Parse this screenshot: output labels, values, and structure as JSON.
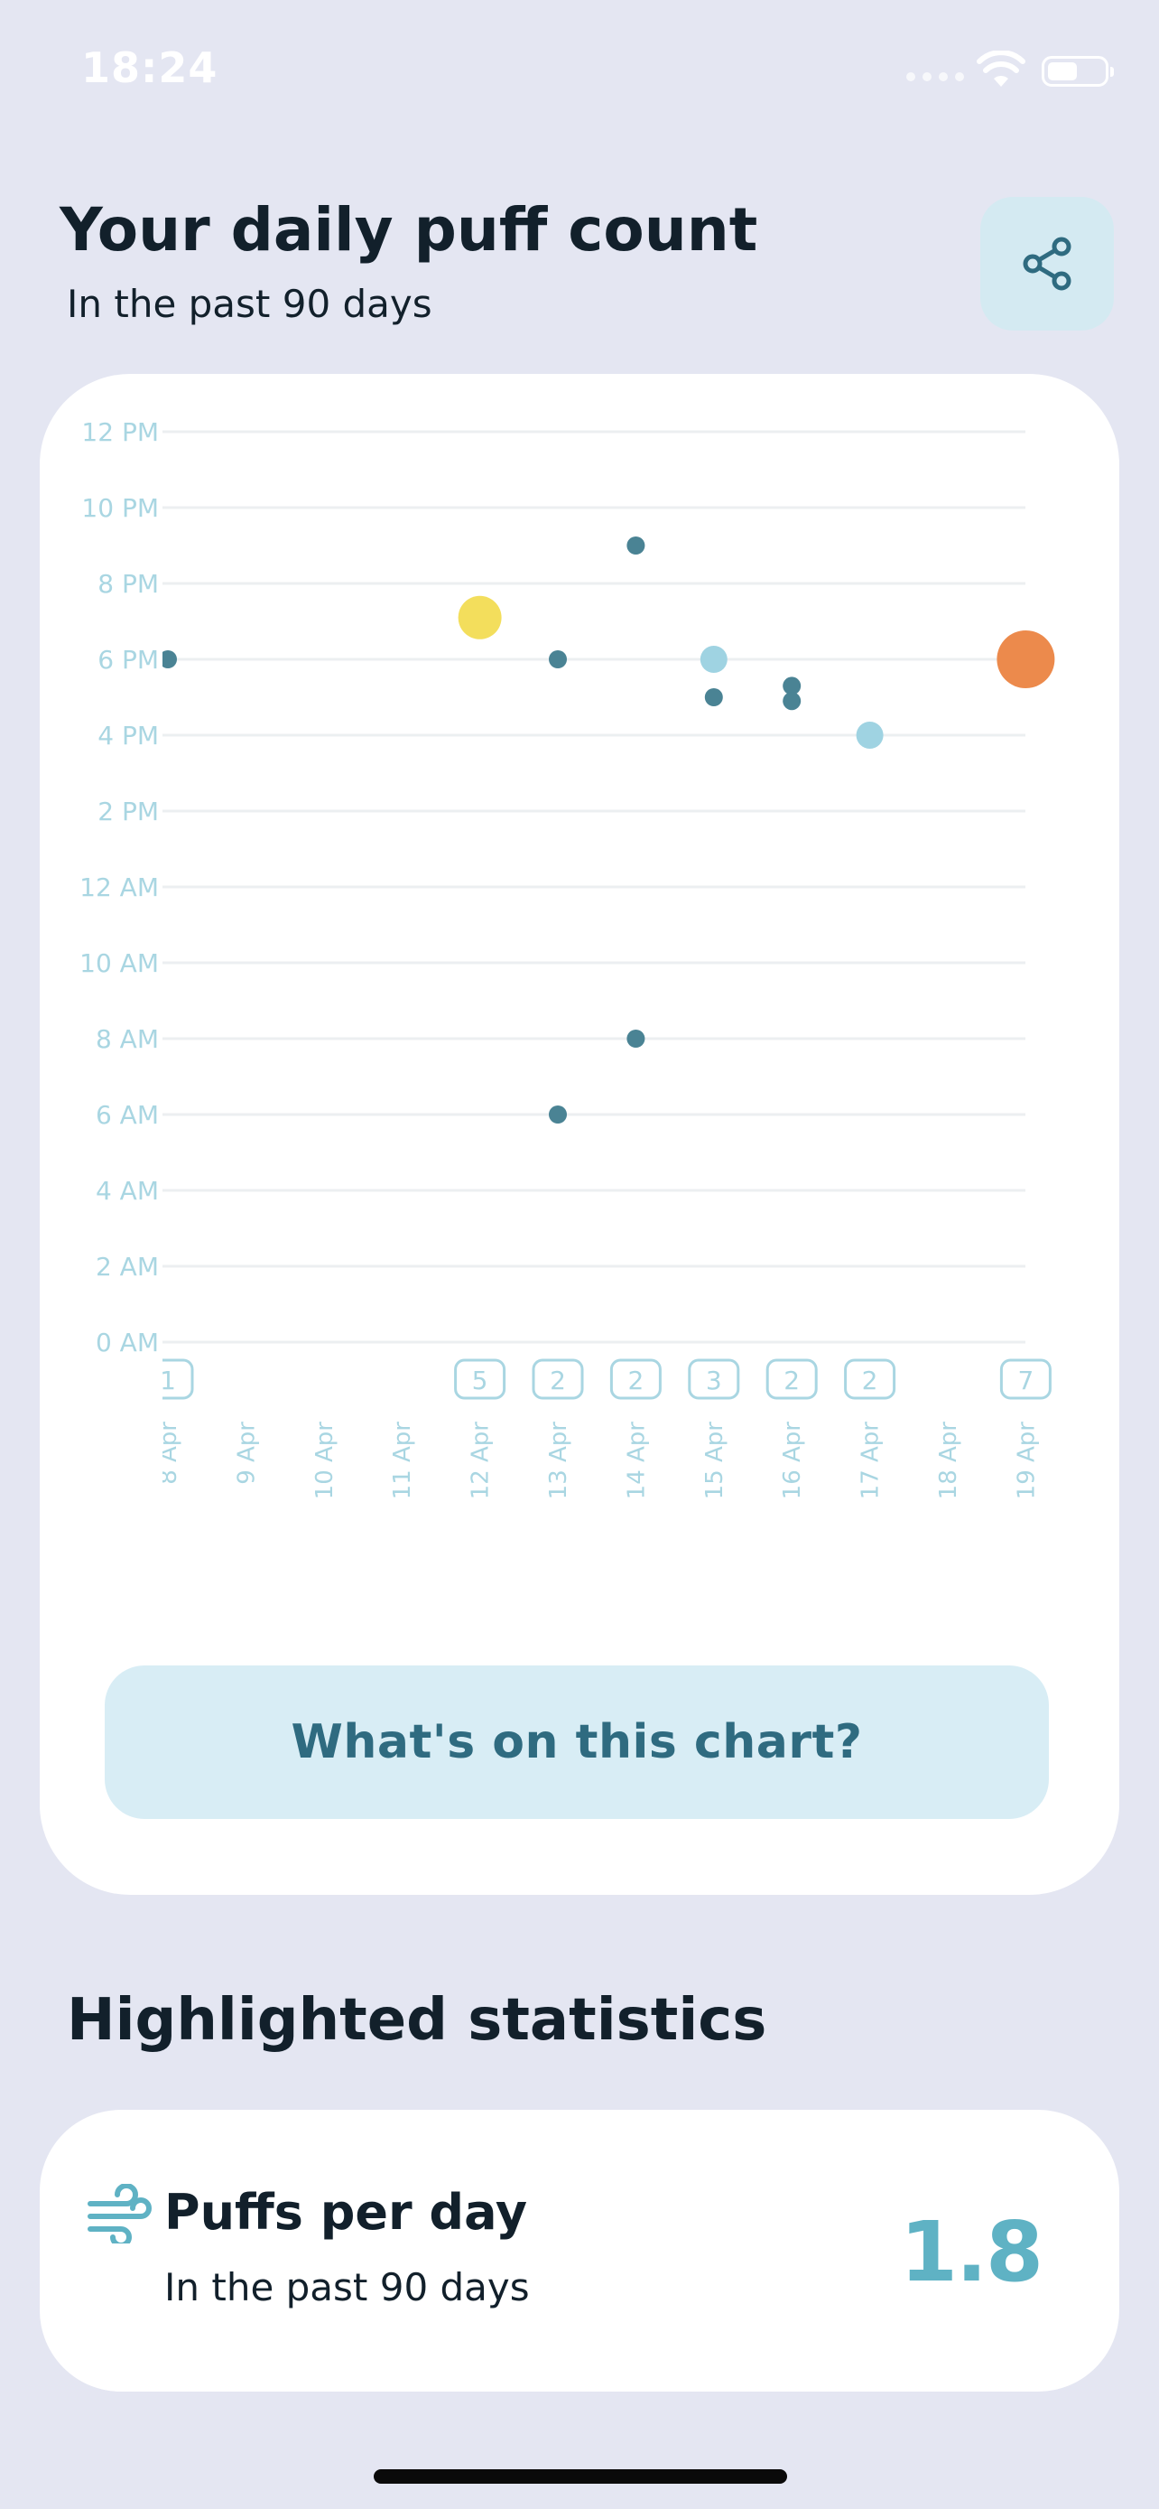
{
  "status_bar": {
    "time": "18:24"
  },
  "header": {
    "title": "Your daily puff count",
    "subtitle": "In the past 90 days"
  },
  "share": {
    "icon": "share-icon"
  },
  "chart_data": {
    "type": "scatter",
    "y_tick_labels": [
      "0 AM",
      "2 AM",
      "4 AM",
      "6 AM",
      "8 AM",
      "10 AM",
      "12 AM",
      "2 PM",
      "4 PM",
      "6 PM",
      "8 PM",
      "10 PM",
      "12 PM"
    ],
    "ylim_hours": [
      0,
      24
    ],
    "categories": [
      "8 Apr",
      "9 Apr",
      "10 Apr",
      "11 Apr",
      "12 Apr",
      "13 Apr",
      "14 Apr",
      "15 Apr",
      "16 Apr",
      "17 Apr",
      "18 Apr",
      "19 Apr"
    ],
    "daily_counts": [
      {
        "day": "8 Apr",
        "count": "1"
      },
      {
        "day": "12 Apr",
        "count": "5"
      },
      {
        "day": "13 Apr",
        "count": "2"
      },
      {
        "day": "14 Apr",
        "count": "2"
      },
      {
        "day": "15 Apr",
        "count": "3"
      },
      {
        "day": "16 Apr",
        "count": "2"
      },
      {
        "day": "17 Apr",
        "count": "2"
      },
      {
        "day": "19 Apr",
        "count": "7"
      }
    ],
    "points": [
      {
        "day": "8 Apr",
        "hour": 18.0,
        "size": 1,
        "color": "#4a8394"
      },
      {
        "day": "12 Apr",
        "hour": 19.1,
        "size": 3,
        "color": "#f3de5c"
      },
      {
        "day": "13 Apr",
        "hour": 18.0,
        "size": 1,
        "color": "#4a8394"
      },
      {
        "day": "13 Apr",
        "hour": 6.0,
        "size": 1,
        "color": "#4a8394"
      },
      {
        "day": "14 Apr",
        "hour": 21.0,
        "size": 1,
        "color": "#4a8394"
      },
      {
        "day": "14 Apr",
        "hour": 8.0,
        "size": 1,
        "color": "#4a8394"
      },
      {
        "day": "15 Apr",
        "hour": 18.0,
        "size": 2,
        "color": "#9fd3e2"
      },
      {
        "day": "15 Apr",
        "hour": 17.0,
        "size": 1,
        "color": "#4a8394"
      },
      {
        "day": "16 Apr",
        "hour": 17.3,
        "size": 1,
        "color": "#4a8394"
      },
      {
        "day": "16 Apr",
        "hour": 16.9,
        "size": 1,
        "color": "#4a8394"
      },
      {
        "day": "17 Apr",
        "hour": 16.0,
        "size": 2,
        "color": "#9fd3e2"
      },
      {
        "day": "19 Apr",
        "hour": 18.0,
        "size": 4,
        "color": "#ec8a4c"
      }
    ]
  },
  "chart_info_button": {
    "label": "What's on this chart?"
  },
  "highlighted": {
    "title": "Highlighted statistics",
    "stat": {
      "icon": "wind-icon",
      "label": "Puffs per day",
      "sublabel": "In the past 90 days",
      "value": "1.8"
    }
  },
  "colors": {
    "background": "#e4e6f2",
    "accent": "#2f6b80",
    "axis_label": "#a9d6e2",
    "stat_value": "#5fb2c4"
  }
}
